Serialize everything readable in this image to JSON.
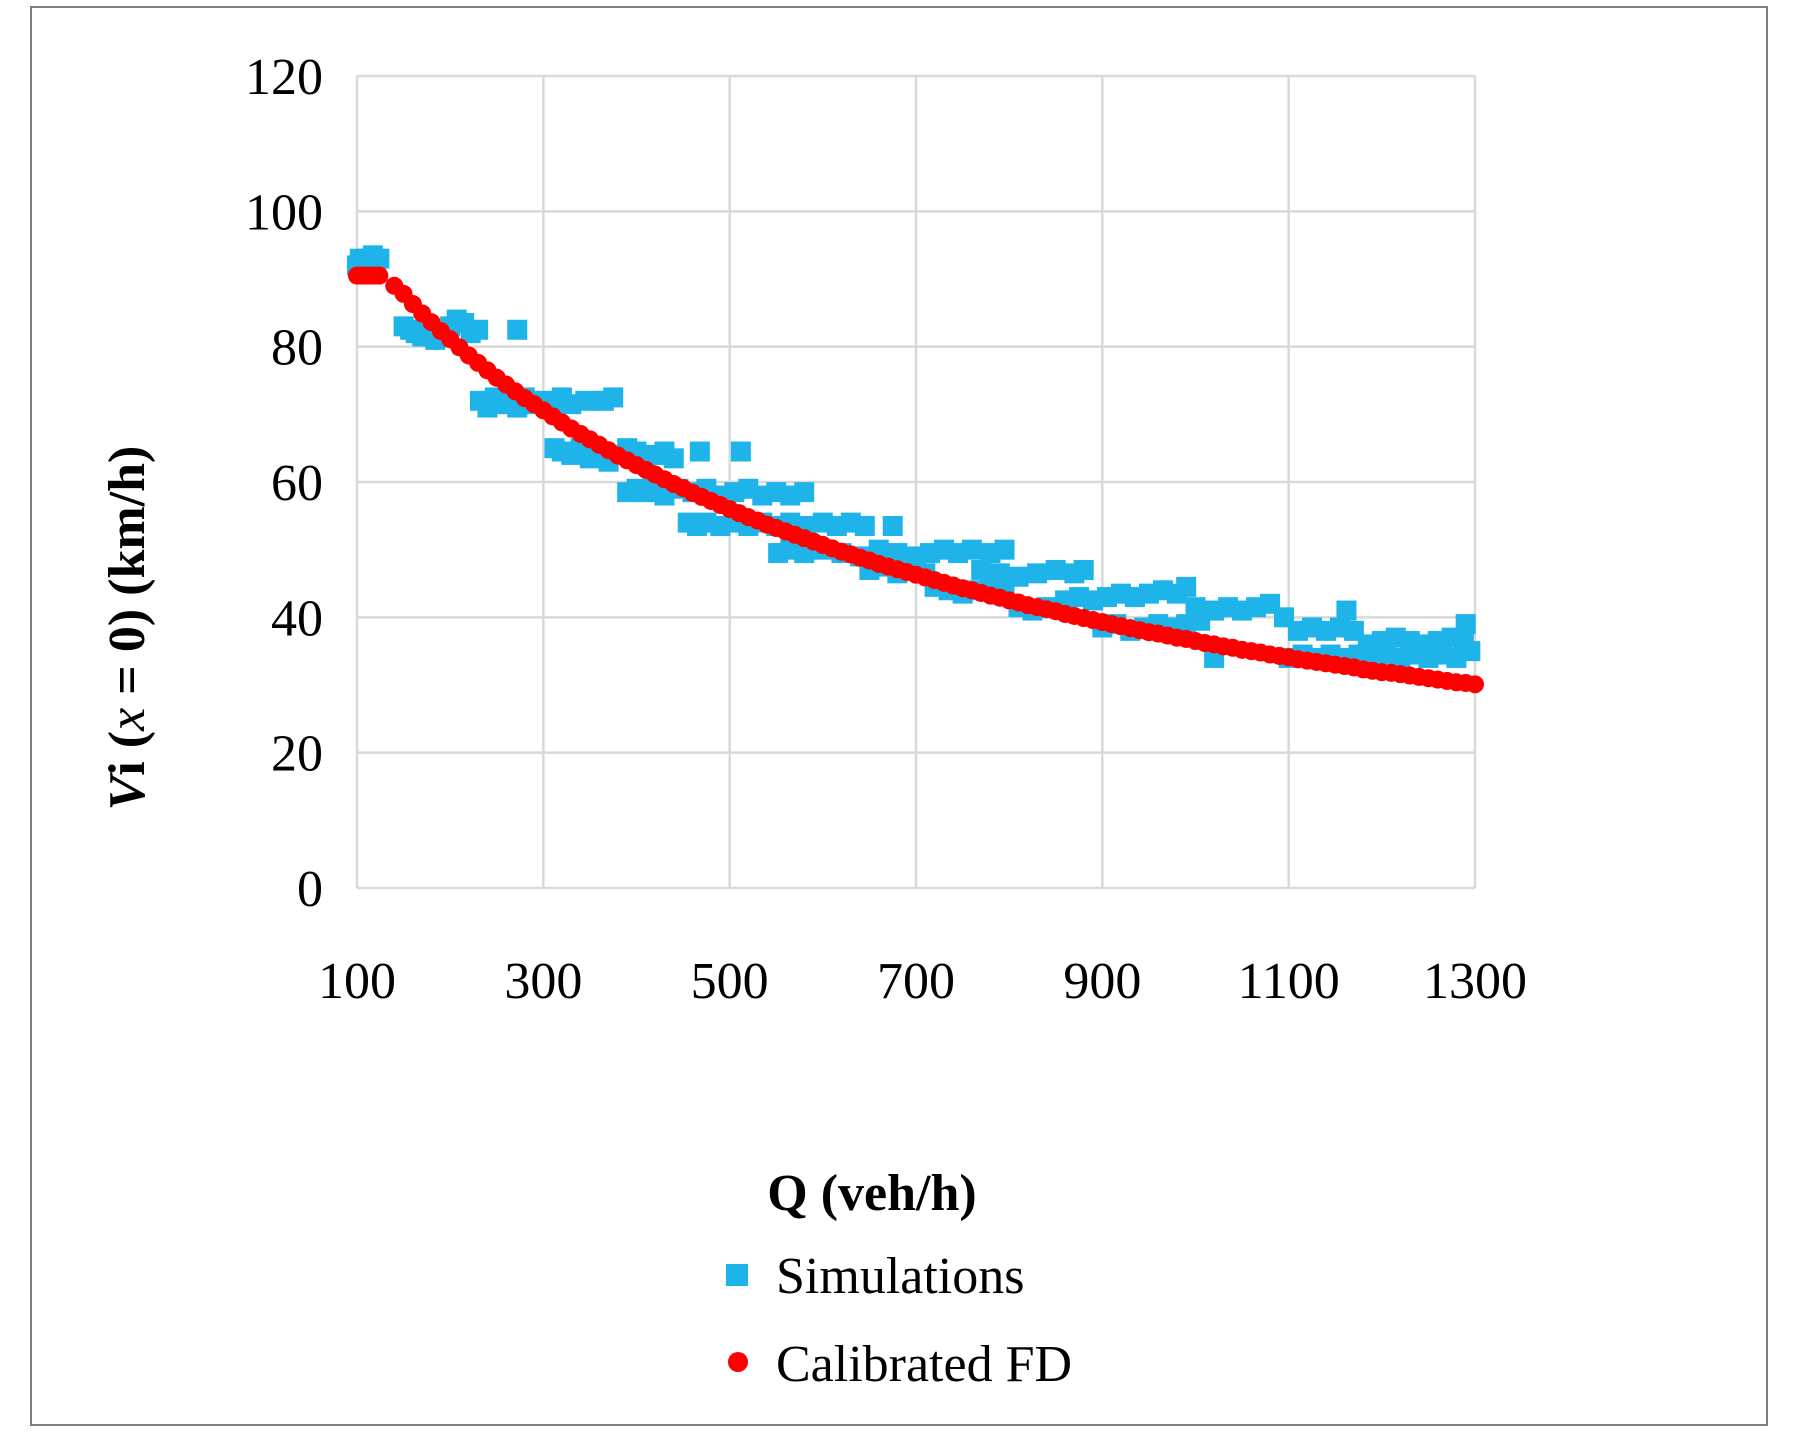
{
  "chart_data": {
    "type": "scatter",
    "title": "",
    "xlabel": "Q (veh/h)",
    "ylabel": {
      "v": "V",
      "i": "i",
      "paren_open": " (",
      "x": "x",
      "rest": " = 0)  (km/h)"
    },
    "xlim": [
      100,
      1300
    ],
    "ylim": [
      0,
      120
    ],
    "xticks": [
      100,
      300,
      500,
      700,
      900,
      1100,
      1300
    ],
    "yticks": [
      0,
      20,
      40,
      60,
      80,
      100,
      120
    ],
    "grid": true,
    "legend_position": "bottom",
    "colors": {
      "simulations": "#1eb4ea",
      "calibrated": "#ff0000",
      "grid": "#d9d9d9"
    },
    "series": [
      {
        "name": "Simulations",
        "marker": "square",
        "points": [
          [
            100,
            92
          ],
          [
            103,
            93
          ],
          [
            107,
            92.5
          ],
          [
            110,
            93
          ],
          [
            113,
            92
          ],
          [
            117,
            93.5
          ],
          [
            120,
            92.5
          ],
          [
            124,
            93
          ],
          [
            150,
            83
          ],
          [
            157,
            82.5
          ],
          [
            163,
            82
          ],
          [
            170,
            81.5
          ],
          [
            177,
            82.5
          ],
          [
            184,
            81
          ],
          [
            190,
            82
          ],
          [
            200,
            83
          ],
          [
            207,
            84
          ],
          [
            215,
            83.5
          ],
          [
            222,
            82
          ],
          [
            230,
            82.5
          ],
          [
            272,
            82.5
          ],
          [
            232,
            72
          ],
          [
            240,
            71
          ],
          [
            248,
            72.5
          ],
          [
            256,
            71.5
          ],
          [
            264,
            72
          ],
          [
            272,
            71
          ],
          [
            280,
            72.5
          ],
          [
            290,
            71.5
          ],
          [
            300,
            72
          ],
          [
            310,
            71
          ],
          [
            320,
            72.5
          ],
          [
            330,
            71.5
          ],
          [
            345,
            72
          ],
          [
            365,
            72
          ],
          [
            375,
            72.5
          ],
          [
            312,
            65
          ],
          [
            320,
            64.5
          ],
          [
            330,
            64
          ],
          [
            340,
            65
          ],
          [
            350,
            63.5
          ],
          [
            360,
            64.5
          ],
          [
            370,
            63
          ],
          [
            380,
            64
          ],
          [
            390,
            65
          ],
          [
            400,
            64.5
          ],
          [
            410,
            63.5
          ],
          [
            420,
            64
          ],
          [
            430,
            64.5
          ],
          [
            440,
            63.5
          ],
          [
            468,
            64.5
          ],
          [
            512,
            64.5
          ],
          [
            390,
            58.5
          ],
          [
            400,
            59
          ],
          [
            410,
            58.5
          ],
          [
            420,
            59.5
          ],
          [
            430,
            58
          ],
          [
            445,
            59
          ],
          [
            460,
            58.5
          ],
          [
            475,
            59
          ],
          [
            490,
            58
          ],
          [
            505,
            58.5
          ],
          [
            520,
            59
          ],
          [
            535,
            58
          ],
          [
            550,
            58.5
          ],
          [
            565,
            58
          ],
          [
            580,
            58.5
          ],
          [
            455,
            54
          ],
          [
            465,
            53.5
          ],
          [
            475,
            54
          ],
          [
            490,
            53.5
          ],
          [
            505,
            54
          ],
          [
            520,
            53.5
          ],
          [
            535,
            54
          ],
          [
            550,
            53.5
          ],
          [
            565,
            54
          ],
          [
            580,
            53.5
          ],
          [
            600,
            54
          ],
          [
            615,
            53.5
          ],
          [
            630,
            54
          ],
          [
            645,
            53.5
          ],
          [
            675,
            53.5
          ],
          [
            552,
            49.5
          ],
          [
            565,
            50
          ],
          [
            580,
            49.5
          ],
          [
            600,
            50
          ],
          [
            620,
            49.5
          ],
          [
            640,
            49
          ],
          [
            660,
            50
          ],
          [
            680,
            49.5
          ],
          [
            700,
            49
          ],
          [
            715,
            49.5
          ],
          [
            730,
            50
          ],
          [
            745,
            49.5
          ],
          [
            760,
            50
          ],
          [
            780,
            49.5
          ],
          [
            795,
            50
          ],
          [
            650,
            47
          ],
          [
            665,
            47.5
          ],
          [
            680,
            46.5
          ],
          [
            695,
            47
          ],
          [
            710,
            46.5
          ],
          [
            720,
            44.5
          ],
          [
            735,
            44
          ],
          [
            750,
            43.5
          ],
          [
            765,
            44
          ],
          [
            780,
            44.5
          ],
          [
            795,
            44
          ],
          [
            810,
            41.5
          ],
          [
            825,
            41
          ],
          [
            840,
            41.5
          ],
          [
            770,
            47
          ],
          [
            790,
            46.5
          ],
          [
            810,
            46
          ],
          [
            830,
            46.5
          ],
          [
            850,
            47
          ],
          [
            870,
            46.5
          ],
          [
            880,
            47
          ],
          [
            860,
            42.5
          ],
          [
            875,
            43
          ],
          [
            890,
            42.5
          ],
          [
            905,
            43
          ],
          [
            920,
            43.5
          ],
          [
            935,
            43
          ],
          [
            950,
            43.5
          ],
          [
            965,
            44
          ],
          [
            980,
            43.5
          ],
          [
            990,
            44.5
          ],
          [
            900,
            38.5
          ],
          [
            915,
            39
          ],
          [
            930,
            38
          ],
          [
            945,
            38.5
          ],
          [
            960,
            39
          ],
          [
            975,
            38.5
          ],
          [
            990,
            39
          ],
          [
            1005,
            39.5
          ],
          [
            1000,
            41.5
          ],
          [
            1020,
            41
          ],
          [
            1035,
            41.5
          ],
          [
            1050,
            41
          ],
          [
            1065,
            41.5
          ],
          [
            1080,
            42
          ],
          [
            1095,
            40
          ],
          [
            1110,
            38
          ],
          [
            1125,
            38.5
          ],
          [
            1140,
            38
          ],
          [
            1155,
            38.5
          ],
          [
            1162,
            41
          ],
          [
            1170,
            38
          ],
          [
            1185,
            36
          ],
          [
            1020,
            34
          ],
          [
            1100,
            34
          ],
          [
            1115,
            34.5
          ],
          [
            1130,
            34
          ],
          [
            1145,
            34.5
          ],
          [
            1160,
            34
          ],
          [
            1175,
            34.5
          ],
          [
            1190,
            34
          ],
          [
            1205,
            34.5
          ],
          [
            1220,
            34
          ],
          [
            1235,
            34.5
          ],
          [
            1250,
            34
          ],
          [
            1265,
            34.5
          ],
          [
            1280,
            34
          ],
          [
            1295,
            35
          ],
          [
            1200,
            36.5
          ],
          [
            1215,
            37
          ],
          [
            1230,
            36.5
          ],
          [
            1245,
            36
          ],
          [
            1260,
            36.5
          ],
          [
            1275,
            37
          ],
          [
            1288,
            36.5
          ],
          [
            1290,
            39
          ]
        ]
      },
      {
        "name": "Calibrated FD",
        "marker": "circle",
        "points": [
          [
            100,
            90.5
          ],
          [
            104,
            90.5
          ],
          [
            108,
            90.5
          ],
          [
            112,
            90.5
          ],
          [
            116,
            90.5
          ],
          [
            120,
            90.5
          ],
          [
            124,
            90.5
          ],
          [
            140,
            89
          ],
          [
            150,
            87.8
          ],
          [
            160,
            86.3
          ],
          [
            170,
            84.9
          ],
          [
            180,
            83.6
          ],
          [
            190,
            82.3
          ],
          [
            200,
            81.1
          ],
          [
            210,
            79.9
          ],
          [
            220,
            78.7
          ],
          [
            230,
            77.6
          ],
          [
            240,
            76.5
          ],
          [
            250,
            75.4
          ],
          [
            260,
            74.4
          ],
          [
            270,
            73.4
          ],
          [
            280,
            72.4
          ],
          [
            290,
            71.5
          ],
          [
            300,
            70.6
          ],
          [
            310,
            69.7
          ],
          [
            320,
            68.8
          ],
          [
            330,
            67.9
          ],
          [
            340,
            67.1
          ],
          [
            350,
            66.3
          ],
          [
            360,
            65.5
          ],
          [
            370,
            64.7
          ],
          [
            380,
            63.9
          ],
          [
            390,
            63.2
          ],
          [
            400,
            62.5
          ],
          [
            410,
            61.8
          ],
          [
            420,
            61.1
          ],
          [
            430,
            60.4
          ],
          [
            440,
            59.7
          ],
          [
            450,
            59.1
          ],
          [
            460,
            58.4
          ],
          [
            470,
            57.8
          ],
          [
            480,
            57.2
          ],
          [
            490,
            56.6
          ],
          [
            500,
            56
          ],
          [
            510,
            55.4
          ],
          [
            520,
            54.8
          ],
          [
            530,
            54.3
          ],
          [
            540,
            53.7
          ],
          [
            550,
            53.2
          ],
          [
            560,
            52.7
          ],
          [
            570,
            52.2
          ],
          [
            580,
            51.7
          ],
          [
            590,
            51.2
          ],
          [
            600,
            50.7
          ],
          [
            610,
            50.2
          ],
          [
            620,
            49.7
          ],
          [
            630,
            49.3
          ],
          [
            640,
            48.8
          ],
          [
            650,
            48.4
          ],
          [
            660,
            47.9
          ],
          [
            670,
            47.5
          ],
          [
            680,
            47.1
          ],
          [
            690,
            46.7
          ],
          [
            700,
            46.3
          ],
          [
            710,
            45.9
          ],
          [
            720,
            45.5
          ],
          [
            730,
            45.1
          ],
          [
            740,
            44.7
          ],
          [
            750,
            44.3
          ],
          [
            760,
            44
          ],
          [
            770,
            43.6
          ],
          [
            780,
            43.2
          ],
          [
            790,
            42.9
          ],
          [
            800,
            42.5
          ],
          [
            810,
            42.2
          ],
          [
            820,
            41.8
          ],
          [
            830,
            41.5
          ],
          [
            840,
            41.2
          ],
          [
            850,
            40.9
          ],
          [
            860,
            40.5
          ],
          [
            870,
            40.2
          ],
          [
            880,
            39.9
          ],
          [
            890,
            39.6
          ],
          [
            900,
            39.3
          ],
          [
            910,
            39
          ],
          [
            920,
            38.7
          ],
          [
            930,
            38.4
          ],
          [
            940,
            38.1
          ],
          [
            950,
            37.8
          ],
          [
            960,
            37.6
          ],
          [
            970,
            37.3
          ],
          [
            980,
            37
          ],
          [
            990,
            36.8
          ],
          [
            1000,
            36.5
          ],
          [
            1010,
            36.2
          ],
          [
            1020,
            36
          ],
          [
            1030,
            35.7
          ],
          [
            1040,
            35.5
          ],
          [
            1050,
            35.2
          ],
          [
            1060,
            35
          ],
          [
            1070,
            34.8
          ],
          [
            1080,
            34.5
          ],
          [
            1090,
            34.3
          ],
          [
            1100,
            34.1
          ],
          [
            1110,
            33.8
          ],
          [
            1120,
            33.6
          ],
          [
            1130,
            33.4
          ],
          [
            1140,
            33.2
          ],
          [
            1150,
            33
          ],
          [
            1160,
            32.8
          ],
          [
            1170,
            32.6
          ],
          [
            1180,
            32.3
          ],
          [
            1190,
            32.1
          ],
          [
            1200,
            31.9
          ],
          [
            1210,
            31.8
          ],
          [
            1220,
            31.6
          ],
          [
            1230,
            31.4
          ],
          [
            1240,
            31.2
          ],
          [
            1250,
            31
          ],
          [
            1260,
            30.8
          ],
          [
            1270,
            30.6
          ],
          [
            1280,
            30.4
          ],
          [
            1290,
            30.3
          ],
          [
            1300,
            30.1
          ]
        ]
      }
    ]
  }
}
